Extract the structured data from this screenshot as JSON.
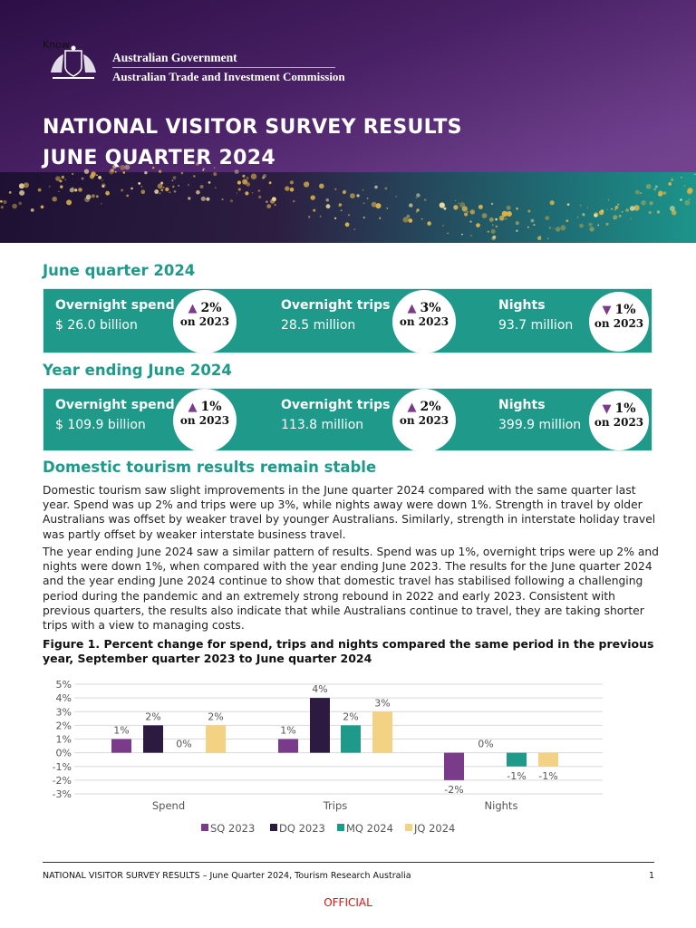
{
  "header": {
    "stray_text": "Know",
    "gov_name": "Australian Government",
    "agency": "Australian Trade and Investment Commission",
    "title_line1": "NATIONAL VISITOR SURVEY RESULTS",
    "title_line2": "JUNE QUARTER 2024"
  },
  "colors": {
    "teal": "#1f9a8a",
    "purple": "#7a3b8a",
    "dark_purple": "#2c1a40",
    "yellow": "#f3d383",
    "official_red": "#dd1111"
  },
  "quarter": {
    "heading": "June quarter 2024",
    "stats": [
      {
        "label": "Overnight spend",
        "value": "$ 26.0 billion",
        "change": "2%",
        "direction": "up",
        "compare": "on 2023"
      },
      {
        "label": "Overnight trips",
        "value": "28.5 million",
        "change": "3%",
        "direction": "up",
        "compare": "on 2023"
      },
      {
        "label": "Nights",
        "value": "93.7 million",
        "change": "1%",
        "direction": "down",
        "compare": "on 2023"
      }
    ]
  },
  "year": {
    "heading": "Year ending June 2024",
    "stats": [
      {
        "label": "Overnight spend",
        "value": "$ 109.9 billion",
        "change": "1%",
        "direction": "up",
        "compare": "on 2023"
      },
      {
        "label": "Overnight trips",
        "value": "113.8 million",
        "change": "2%",
        "direction": "up",
        "compare": "on 2023"
      },
      {
        "label": "Nights",
        "value": "399.9 million",
        "change": "1%",
        "direction": "down",
        "compare": "on 2023"
      }
    ]
  },
  "section": {
    "heading": "Domestic tourism results remain stable",
    "para1": "Domestic tourism saw slight improvements in the June quarter 2024 compared with the same quarter last year. Spend was up 2% and trips were up 3%, while nights away were down 1%. Strength in travel by older Australians was offset by weaker travel by younger Australians. Similarly, strength in interstate holiday travel was partly offset by weaker interstate business travel.",
    "para2": "The year ending June 2024 saw a similar pattern of results. Spend was up 1%, overnight trips were up 2% and nights were down 1%, when compared with the year ending June 2023. The results for the June quarter 2024 and the year ending June 2024 continue to show that domestic travel has stabilised following a challenging period during the pandemic and an extremely strong rebound in 2022 and early 2023. Consistent with previous quarters, the results also indicate that while Australians continue to travel, they are taking shorter trips with a view to managing costs."
  },
  "figure_caption": "Figure 1. Percent change for spend, trips and nights compared the same period in the previous year, September quarter 2023 to June quarter 2024",
  "chart_data": {
    "type": "bar",
    "title": "",
    "categories": [
      "Spend",
      "Trips",
      "Nights"
    ],
    "series": [
      {
        "name": "SQ 2023",
        "color": "#7a3b8a",
        "values": [
          1,
          1,
          -2
        ],
        "labels": [
          "1%",
          "1%",
          "-2%"
        ]
      },
      {
        "name": "DQ 2023",
        "color": "#2c1a40",
        "values": [
          2,
          4,
          0
        ],
        "labels": [
          "2%",
          "4%",
          "0%"
        ]
      },
      {
        "name": "MQ 2024",
        "color": "#1f9a8a",
        "values": [
          0,
          2,
          -1
        ],
        "labels": [
          "0%",
          "2%",
          "-1%"
        ]
      },
      {
        "name": "JQ 2024",
        "color": "#f3d383",
        "values": [
          2,
          3,
          -1
        ],
        "labels": [
          "2%",
          "3%",
          "-1%"
        ]
      }
    ],
    "ylim": [
      -3,
      5
    ],
    "yticks": [
      "5%",
      "4%",
      "3%",
      "2%",
      "1%",
      "0%",
      "-1%",
      "-2%",
      "-3%"
    ],
    "grid": true,
    "legend": "bottom"
  },
  "footer": {
    "text": "NATIONAL VISITOR SURVEY RESULTS – June Quarter 2024, Tourism Research Australia",
    "page": "1",
    "classification": "OFFICIAL"
  }
}
